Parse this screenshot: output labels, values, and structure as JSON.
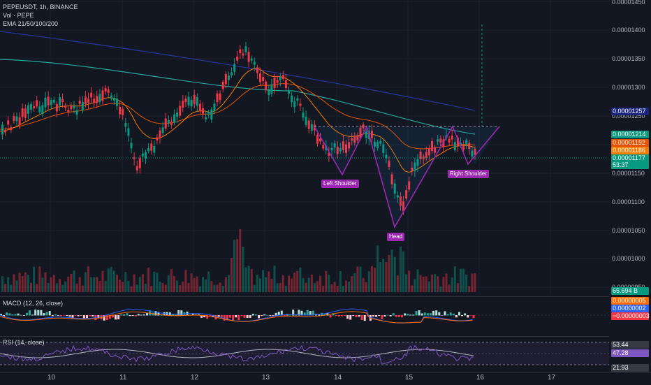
{
  "header": {
    "symbol_line": "PEPEUSDT, 1h, BINANCE",
    "volume_line": "Vol · PEPE",
    "ema_line": "EMA 21/50/100/200"
  },
  "price_axis": {
    "ticks": [
      "0.00001450",
      "0.00001400",
      "0.00001350",
      "0.00001300",
      "0.00001250",
      "0.00001150",
      "0.00001100",
      "0.00001050",
      "0.00001000",
      "0.00000950"
    ],
    "tags": [
      {
        "text": "0.00001257",
        "color": "#1a237e"
      },
      {
        "text": "0.00001214",
        "color": "#089981"
      },
      {
        "text": "0.00001192",
        "color": "#e65100"
      },
      {
        "text": "0.00001186",
        "color": "#f57c00"
      },
      {
        "text": "0.00001177",
        "color": "#089981"
      },
      {
        "text": "53:37",
        "color": "#089981"
      },
      {
        "text": "65.694 B",
        "color": "#089981"
      }
    ]
  },
  "annotations": {
    "left_shoulder": "Left Shoulder",
    "head": "Head",
    "right_shoulder": "Right Shoulder"
  },
  "macd": {
    "legend": "MACD (12, 26, close)",
    "tags": [
      {
        "text": "0.00000005",
        "color": "#ff6d00"
      },
      {
        "text": "0.00000002",
        "color": "#2962ff"
      },
      {
        "text": "−0.00000003",
        "color": "#f23645"
      }
    ]
  },
  "rsi": {
    "legend": "RSI (14, close)",
    "tags": [
      {
        "text": "53.44",
        "color": "#363a45"
      },
      {
        "text": "47.28",
        "color": "#7e57c2"
      },
      {
        "text": "21.93",
        "color": "#363a45"
      }
    ]
  },
  "time_axis": {
    "labels": [
      "10",
      "11",
      "12",
      "13",
      "14",
      "15",
      "16",
      "17"
    ]
  },
  "colors": {
    "up": "#089981",
    "down": "#f23645",
    "pattern": "#9c27b0"
  }
}
